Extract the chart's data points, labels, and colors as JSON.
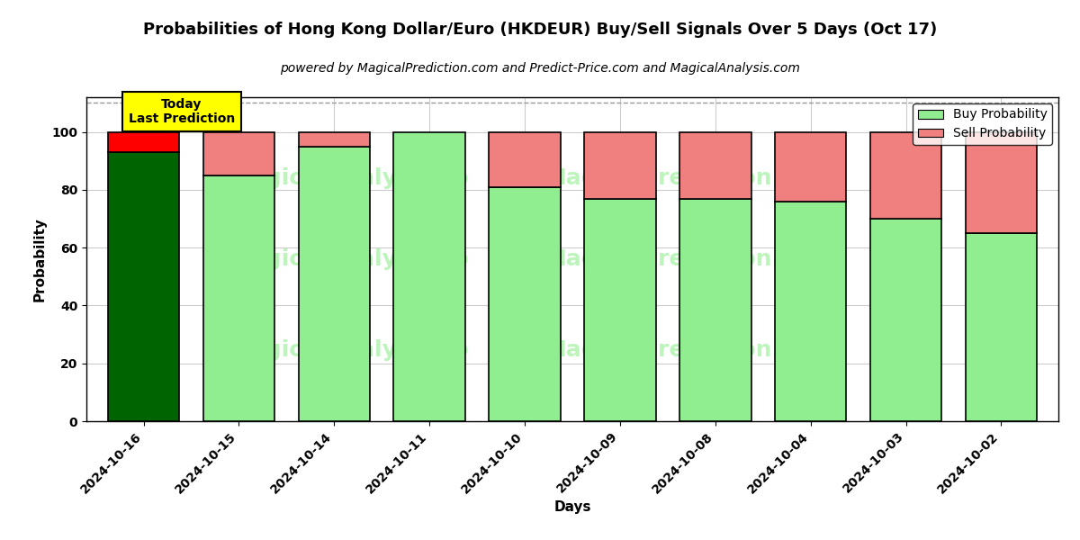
{
  "title": "Probabilities of Hong Kong Dollar/Euro (HKDEUR) Buy/Sell Signals Over 5 Days (Oct 17)",
  "subtitle": "powered by MagicalPrediction.com and Predict-Price.com and MagicalAnalysis.com",
  "xlabel": "Days",
  "ylabel": "Probability",
  "dates": [
    "2024-10-16",
    "2024-10-15",
    "2024-10-14",
    "2024-10-11",
    "2024-10-10",
    "2024-10-09",
    "2024-10-08",
    "2024-10-04",
    "2024-10-03",
    "2024-10-02"
  ],
  "buy_values": [
    93,
    85,
    95,
    100,
    81,
    77,
    77,
    76,
    70,
    65
  ],
  "sell_values": [
    7,
    15,
    5,
    0,
    19,
    23,
    23,
    24,
    30,
    35
  ],
  "buy_color_today": "#006400",
  "sell_color_today": "#FF0000",
  "buy_color_rest": "#90EE90",
  "sell_color_rest": "#F08080",
  "bar_edge_color": "#000000",
  "bar_width": 0.75,
  "ylim": [
    0,
    112
  ],
  "yticks": [
    0,
    20,
    40,
    60,
    80,
    100
  ],
  "dashed_line_y": 110,
  "annotation_text": "Today\nLast Prediction",
  "annotation_bg_color": "#FFFF00",
  "annotation_border_color": "#000000",
  "legend_buy_color": "#90EE90",
  "legend_sell_color": "#F08080",
  "title_fontsize": 13,
  "subtitle_fontsize": 10,
  "axis_label_fontsize": 11,
  "tick_fontsize": 10
}
